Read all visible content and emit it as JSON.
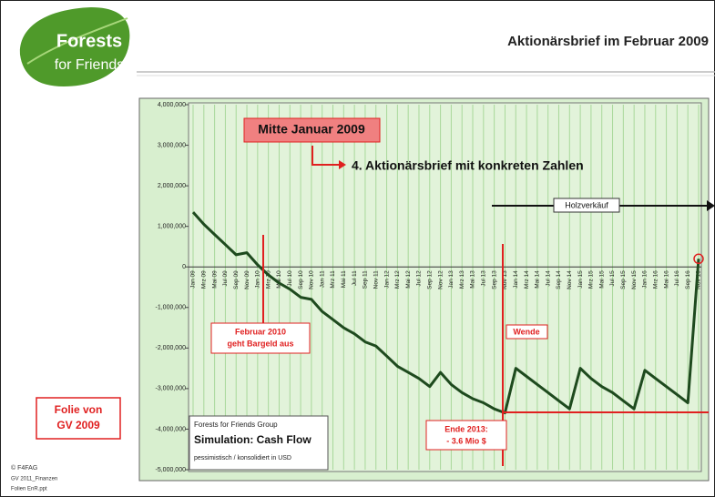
{
  "slide": {
    "logo": [
      "Forests",
      "for Friends"
    ],
    "title": "Aktionärsbrief im Februar 2009",
    "stamp": [
      "Folie von",
      "GV 2009"
    ],
    "footer": [
      "© F4FAG",
      "GV 2011_Finanzen",
      "Folien EnR.ppt"
    ]
  },
  "chart_data": {
    "type": "line",
    "categories": [
      "Jan 09",
      "Mrz 09",
      "Mai 09",
      "Jul 09",
      "Sep 09",
      "Nov 09",
      "Jan 10",
      "Mrz 10",
      "Mai 10",
      "Jul 10",
      "Sep 10",
      "Nov 10",
      "Jan 11",
      "Mrz 11",
      "Mai 11",
      "Jul 11",
      "Sep 11",
      "Nov 11",
      "Jan 12",
      "Mrz 12",
      "Mai 12",
      "Jul 12",
      "Sep 12",
      "Nov 12",
      "Jan 13",
      "Mrz 13",
      "Mai 13",
      "Jul 13",
      "Sep 13",
      "Nov 13",
      "Jan 14",
      "Mrz 14",
      "Mai 14",
      "Jul 14",
      "Sep 14",
      "Nov 14",
      "Jan 15",
      "Mrz 15",
      "Mai 15",
      "Jul 15",
      "Sep 15",
      "Nov 15",
      "Jan 16",
      "Mrz 16",
      "Mai 16",
      "Jul 16",
      "Sep 16",
      "Nov 16"
    ],
    "series": [
      {
        "color": "#1e4a1e",
        "values": [
          1350000,
          1050000,
          800000,
          550000,
          300000,
          350000,
          50000,
          -200000,
          -400000,
          -550000,
          -750000,
          -800000,
          -1100000,
          -1300000,
          -1500000,
          -1650000,
          -1850000,
          -1950000,
          -2200000,
          -2450000,
          -2600000,
          -2750000,
          -2950000,
          -2600000,
          -2900000,
          -3100000,
          -3250000,
          -3350000,
          -3500000,
          -3600000,
          -2500000,
          -2700000,
          -2900000,
          -3100000,
          -3300000,
          -3500000,
          -2500000,
          -2750000,
          -2950000,
          -3100000,
          -3300000,
          -3500000,
          -2550000,
          -2750000,
          -2950000,
          -3150000,
          -3350000,
          200000
        ]
      }
    ],
    "ylim": [
      -5000000,
      4000000
    ],
    "yticks": [
      {
        "value": 4000000,
        "label": "4,000,000"
      },
      {
        "value": 3000000,
        "label": "3,000,000"
      },
      {
        "value": 2000000,
        "label": "2,000,000"
      },
      {
        "value": 1000000,
        "label": "1,000,000"
      },
      0,
      {
        "value": -1000000,
        "label": "-1,000,000"
      },
      {
        "value": -2000000,
        "label": "-2,000,000"
      },
      {
        "value": -3000000,
        "label": "-3,000,000"
      },
      {
        "value": -4000000,
        "label": "-4,000,000"
      },
      {
        "value": -5000000,
        "label": "-5,000,000"
      }
    ],
    "annotations": {
      "mid_january": "Mitte Januar 2009",
      "letter": "4. Aktionärsbrief mit konkreten Zahlen",
      "timber": "Holzverkäuf",
      "cash_out": [
        "Februar 2010",
        "geht Bargeld aus"
      ],
      "turn": "Wende",
      "end_2013": [
        "Ende 2013:",
        "- 3.6 Mio $"
      ],
      "info": [
        "Forests for Friends Group",
        "Simulation: Cash Flow",
        "pessimistisch / konsolidiert in USD"
      ]
    }
  }
}
